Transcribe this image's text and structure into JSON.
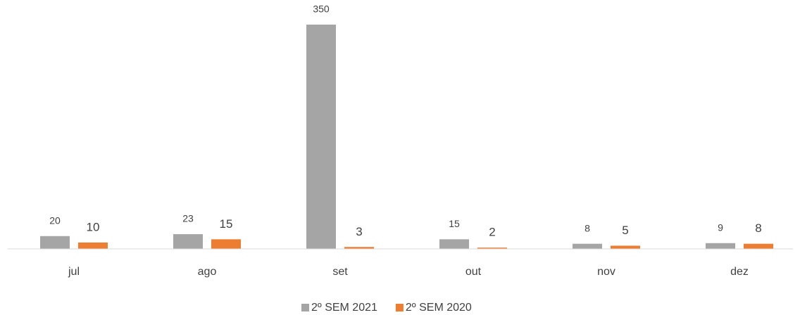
{
  "chart_data": {
    "type": "bar",
    "categories": [
      "jul",
      "ago",
      "set",
      "out",
      "nov",
      "dez"
    ],
    "series": [
      {
        "name": "2º SEM 2021",
        "color": "#a5a5a5",
        "values": [
          20,
          23,
          350,
          15,
          8,
          9
        ]
      },
      {
        "name": "2º SEM 2020",
        "color": "#ed7d31",
        "values": [
          10,
          15,
          3,
          2,
          5,
          8
        ]
      }
    ],
    "ylim": [
      0,
      350
    ],
    "legend": "bottom"
  }
}
